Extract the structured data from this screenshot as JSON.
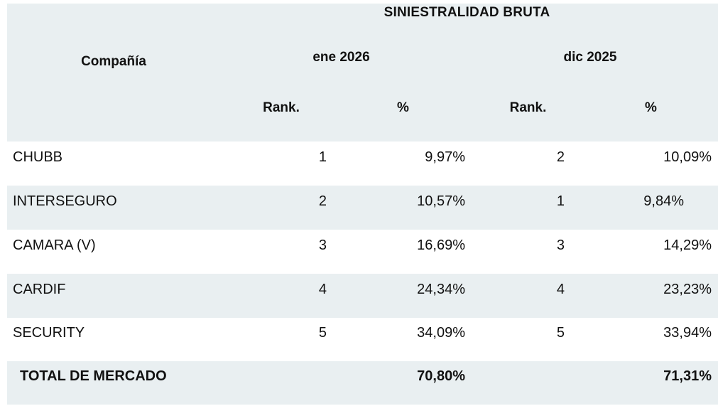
{
  "table": {
    "title": "SINIESTRALIDAD BRUTA",
    "company_header": "Compañía",
    "periods": [
      {
        "label": "ene 2026"
      },
      {
        "label": "dic 2025"
      }
    ],
    "subheaders": {
      "rank1": "Rank.",
      "pct1": "%",
      "rank2": "Rank.",
      "pct2": "%"
    },
    "rows": [
      {
        "company": "CHUBB",
        "rank1": "1",
        "pct1": "9,97%",
        "rank2": "2",
        "pct2": "10,09%"
      },
      {
        "company": "INTERSEGURO",
        "rank1": "2",
        "pct1": "10,57%",
        "rank2": "1",
        "pct2": "9,84%"
      },
      {
        "company": "CAMARA (V)",
        "rank1": "3",
        "pct1": "16,69%",
        "rank2": "3",
        "pct2": "14,29%"
      },
      {
        "company": "CARDIF",
        "rank1": "4",
        "pct1": "24,34%",
        "rank2": "4",
        "pct2": "23,23%"
      },
      {
        "company": "SECURITY",
        "rank1": "5",
        "pct1": "34,09%",
        "rank2": "5",
        "pct2": "33,94%"
      }
    ],
    "total_row": {
      "company": "TOTAL DE MERCADO",
      "pct1": "70,80%",
      "pct2": "71,31%"
    }
  },
  "colors": {
    "band_background": "#e9eff1",
    "text": "#111111"
  },
  "chart_data": {
    "type": "table",
    "title": "SINIESTRALIDAD BRUTA",
    "columns": [
      "Compañía",
      "ene 2026 Rank.",
      "ene 2026 %",
      "dic 2025 Rank.",
      "dic 2025 %"
    ],
    "rows": [
      [
        "CHUBB",
        1,
        "9,97%",
        2,
        "10,09%"
      ],
      [
        "INTERSEGURO",
        2,
        "10,57%",
        1,
        "9,84%"
      ],
      [
        "CAMARA (V)",
        3,
        "16,69%",
        3,
        "14,29%"
      ],
      [
        "CARDIF",
        4,
        "24,34%",
        4,
        "23,23%"
      ],
      [
        "SECURITY",
        5,
        "34,09%",
        5,
        "33,94%"
      ]
    ],
    "total": [
      "TOTAL DE MERCADO",
      null,
      "70,80%",
      null,
      "71,31%"
    ],
    "values_pct_ene2026": [
      9.97,
      10.57,
      16.69,
      24.34,
      34.09,
      70.8
    ],
    "values_pct_dic2025": [
      10.09,
      9.84,
      14.29,
      23.23,
      33.94,
      71.31
    ]
  }
}
